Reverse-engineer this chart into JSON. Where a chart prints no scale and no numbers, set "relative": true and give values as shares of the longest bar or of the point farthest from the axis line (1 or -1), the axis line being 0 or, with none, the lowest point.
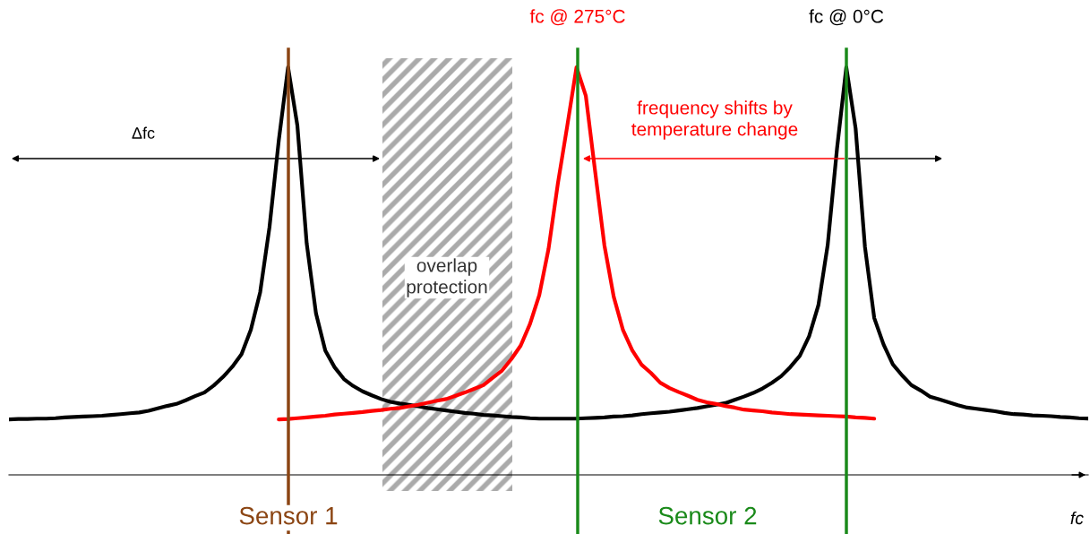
{
  "chart_data": {
    "type": "line",
    "relative": true,
    "tick_labels": false,
    "xlabel": "fc",
    "categories": [
      null,
      null,
      null,
      null,
      null,
      null,
      null,
      null,
      null,
      null,
      null,
      null,
      null,
      null,
      null,
      null,
      null,
      null,
      null,
      null,
      null,
      null,
      null,
      null,
      null,
      null,
      null,
      null,
      null,
      null,
      null,
      null,
      null,
      null,
      null,
      null,
      null,
      null,
      null,
      null,
      null,
      null,
      null,
      null,
      null,
      null,
      null,
      null,
      null,
      null,
      null,
      null,
      null,
      null,
      null,
      null,
      null,
      null,
      null,
      null,
      null,
      null,
      null,
      null,
      null,
      null,
      null,
      null,
      null,
      null,
      null,
      null,
      null,
      null,
      null,
      null,
      null,
      null,
      null,
      null,
      null,
      null,
      null,
      null,
      null,
      null,
      null,
      null,
      null,
      null,
      null,
      null,
      null,
      null,
      null,
      null,
      null,
      null,
      null,
      null,
      null,
      null,
      null,
      null,
      null,
      null,
      null,
      null,
      null,
      null,
      null,
      null,
      null,
      null,
      null,
      null,
      null
    ],
    "series": [
      {
        "color": "#000000",
        "values": [
          0.136,
          0.137,
          0.137,
          0.138,
          0.138,
          0.139,
          0.141,
          0.142,
          0.143,
          0.144,
          0.145,
          0.147,
          0.149,
          0.151,
          0.153,
          0.157,
          0.163,
          0.169,
          0.174,
          0.183,
          0.193,
          0.202,
          0.219,
          0.24,
          0.265,
          0.296,
          0.356,
          0.448,
          0.607,
          0.82,
          1.0,
          0.857,
          0.568,
          0.396,
          0.305,
          0.264,
          0.235,
          0.218,
          0.205,
          0.195,
          0.186,
          0.179,
          0.175,
          0.172,
          0.168,
          0.164,
          0.161,
          0.158,
          0.155,
          0.152,
          0.15,
          0.147,
          0.146,
          0.144,
          0.142,
          0.141,
          0.139,
          0.138,
          0.138,
          0.138,
          0.138,
          0.138,
          0.139,
          0.14,
          0.141,
          0.143,
          0.144,
          0.146,
          0.149,
          0.151,
          0.153,
          0.155,
          0.158,
          0.161,
          0.164,
          0.168,
          0.172,
          0.176,
          0.184,
          0.192,
          0.201,
          0.212,
          0.226,
          0.242,
          0.265,
          0.292,
          0.34,
          0.416,
          0.564,
          0.8,
          1.0,
          0.85,
          0.56,
          0.385,
          0.32,
          0.271,
          0.244,
          0.22,
          0.207,
          0.192,
          0.185,
          0.178,
          0.171,
          0.165,
          0.162,
          0.159,
          0.156,
          0.152,
          0.149,
          0.148,
          0.146,
          0.145,
          0.144,
          0.142,
          0.141,
          0.139,
          0.138
        ]
      },
      {
        "color": "#ff0000",
        "values": [
          null,
          null,
          null,
          null,
          null,
          null,
          null,
          null,
          null,
          null,
          null,
          null,
          null,
          null,
          null,
          null,
          null,
          null,
          null,
          null,
          null,
          null,
          null,
          null,
          null,
          null,
          null,
          null,
          null,
          0.136,
          0.137,
          0.139,
          0.141,
          0.143,
          0.145,
          0.148,
          0.15,
          0.152,
          0.154,
          0.157,
          0.159,
          0.162,
          0.164,
          0.168,
          0.172,
          0.177,
          0.182,
          0.186,
          0.194,
          0.202,
          0.211,
          0.22,
          0.238,
          0.256,
          0.284,
          0.317,
          0.37,
          0.441,
          0.555,
          0.715,
          0.855,
          1.0,
          0.93,
          0.745,
          0.563,
          0.437,
          0.355,
          0.305,
          0.27,
          0.25,
          0.226,
          0.213,
          0.203,
          0.194,
          0.184,
          0.178,
          0.174,
          0.169,
          0.165,
          0.16,
          0.158,
          0.156,
          0.153,
          0.151,
          0.149,
          0.148,
          0.147,
          0.146,
          0.145,
          0.144,
          0.143,
          0.141,
          0.14,
          0.138,
          null,
          null,
          null,
          null,
          null,
          null,
          null,
          null,
          null,
          null,
          null,
          null,
          null,
          null,
          null,
          null,
          null,
          null,
          null,
          null,
          null,
          null,
          null
        ]
      }
    ],
    "annotations": [
      "Δfc",
      "frequency shifts by\ntemperature change",
      "Sensor 2",
      "Sensor 1",
      "fc @ 275°C",
      "fc @ 0°C",
      "overlap\nprotection"
    ]
  }
}
